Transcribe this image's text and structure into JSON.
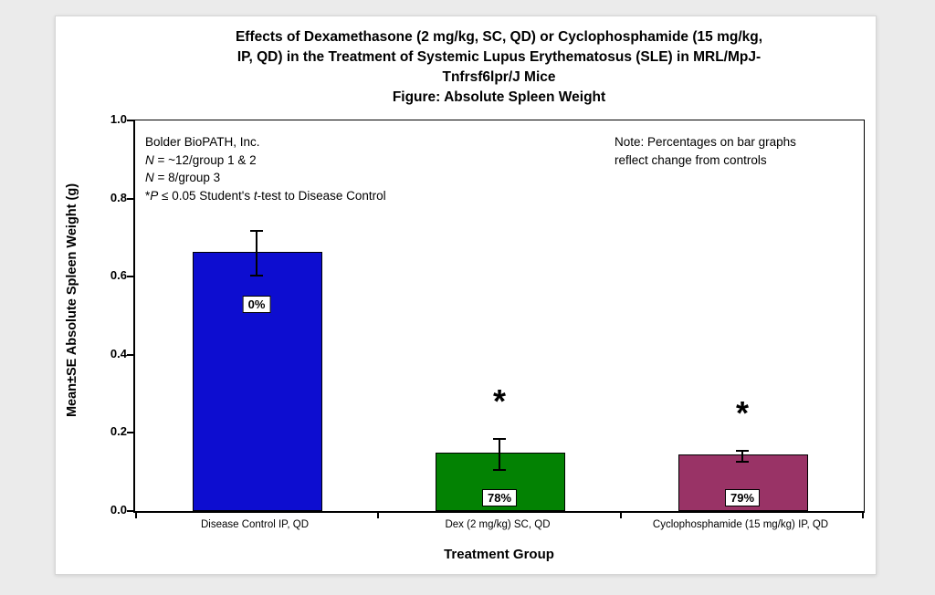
{
  "page": {
    "background": "#ebebeb",
    "panel_background": "#ffffff"
  },
  "chart_data": {
    "type": "bar",
    "title_lines": [
      "Effects of Dexamethasone (2 mg/kg, SC, QD) or Cyclophosphamide (15 mg/kg,",
      "IP, QD) in the Treatment of Systemic Lupus Erythematosus (SLE) in MRL/MpJ-",
      "Tnfrsf6lpr/J Mice"
    ],
    "subtitle": "Figure: Absolute Spleen Weight",
    "xlabel": "Treatment Group",
    "ylabel": "Mean±SE Absolute Spleen Weight (g)",
    "ylim": [
      0,
      1.0
    ],
    "ytick_values": [
      0,
      0.2,
      0.4,
      0.6,
      0.8,
      1.0
    ],
    "ytick_labels": [
      "0.0",
      "0.2",
      "0.4",
      "0.6",
      "0.8",
      "1.0"
    ],
    "categories": [
      "Disease Control IP, QD",
      "Dex (2 mg/kg) SC, QD",
      "Cyclophosphamide (15 mg/kg) IP, QD"
    ],
    "values": [
      0.66,
      0.145,
      0.14
    ],
    "se": [
      0.06,
      0.042,
      0.016
    ],
    "bar_colors": [
      "#0d0dd0",
      "#038203",
      "#993366"
    ],
    "bar_labels": [
      "0%",
      "78%",
      "79%"
    ],
    "significant": [
      false,
      true,
      true
    ],
    "significance_marker": "*",
    "grid": false,
    "legend": null
  },
  "annotations": {
    "info_box_lines": [
      [
        {
          "text": "Bolder BioPATH, Inc."
        }
      ],
      [
        {
          "text": "N",
          "italic": true
        },
        {
          "text": " = ~12/group 1 & 2"
        }
      ],
      [
        {
          "text": "N",
          "italic": true
        },
        {
          "text": " = 8/group 3"
        }
      ],
      [
        {
          "text": "*"
        },
        {
          "text": "P",
          "italic": true
        },
        {
          "text": " ≤ 0.05 Student's "
        },
        {
          "text": "t",
          "italic": true
        },
        {
          "text": "-test to Disease Control"
        }
      ]
    ],
    "note_lines": [
      "Note: Percentages on bar graphs",
      "reflect change from controls"
    ]
  }
}
